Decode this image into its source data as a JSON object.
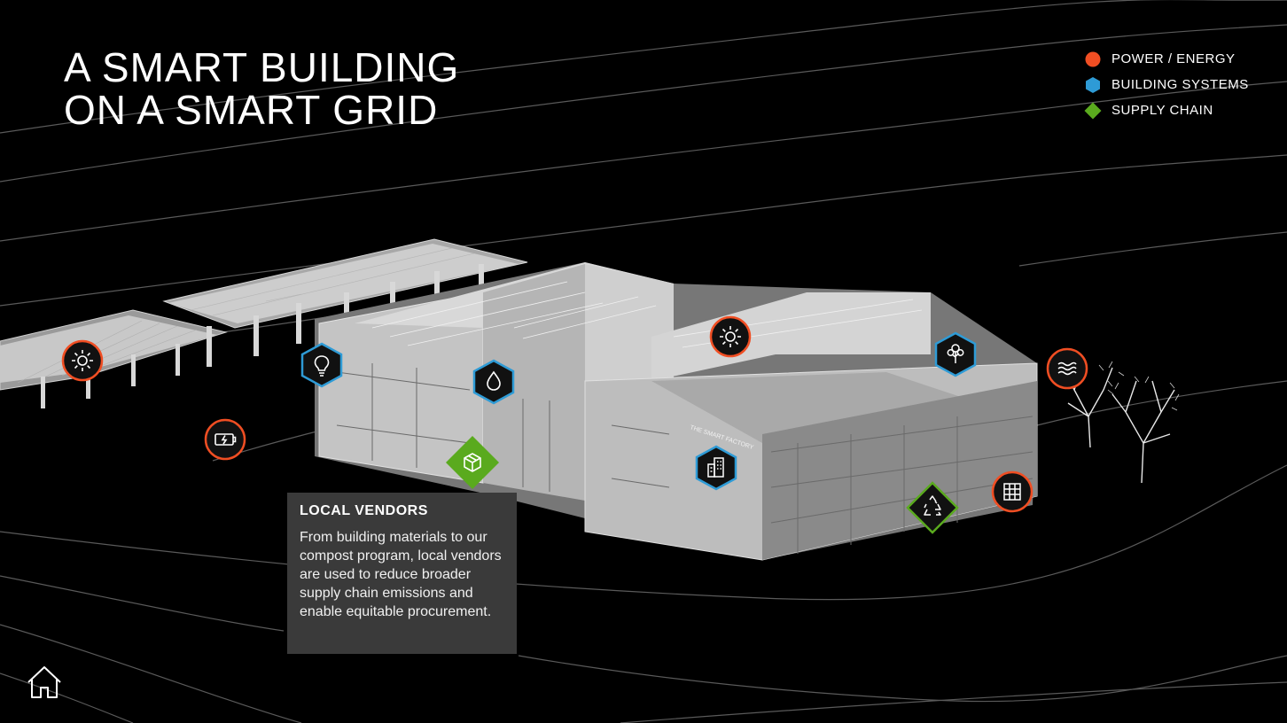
{
  "title": {
    "line1": "A SMART BUILDING",
    "line2": "ON A SMART GRID"
  },
  "legend": [
    {
      "label": "POWER / ENERGY",
      "shape": "circle",
      "color": "#f04e23"
    },
    {
      "label": "BUILDING SYSTEMS",
      "shape": "hexagon",
      "color": "#2e9bd6"
    },
    {
      "label": "SUPPLY CHAIN",
      "shape": "diamond",
      "color": "#5aaa1e"
    }
  ],
  "building_sign": "THE SMART FACTORY",
  "tooltip": {
    "heading": "LOCAL VENDORS",
    "body": "From building materials to our compost program, local vendors are used to reduce broader supply chain emissions and enable equitable procurement."
  },
  "markers": [
    {
      "category": "power",
      "icon": "sun-icon"
    },
    {
      "category": "power",
      "icon": "battery-icon"
    },
    {
      "category": "building",
      "icon": "lightbulb-icon"
    },
    {
      "category": "building",
      "icon": "water-drop-icon"
    },
    {
      "category": "supply",
      "icon": "box-icon",
      "active": true
    },
    {
      "category": "power",
      "icon": "sun-icon"
    },
    {
      "category": "building",
      "icon": "building-icon"
    },
    {
      "category": "building",
      "icon": "tree-icon"
    },
    {
      "category": "power",
      "icon": "waves-icon"
    },
    {
      "category": "power",
      "icon": "grid-icon"
    },
    {
      "category": "supply",
      "icon": "recycle-icon"
    }
  ],
  "nav": {
    "home": "home-icon"
  }
}
